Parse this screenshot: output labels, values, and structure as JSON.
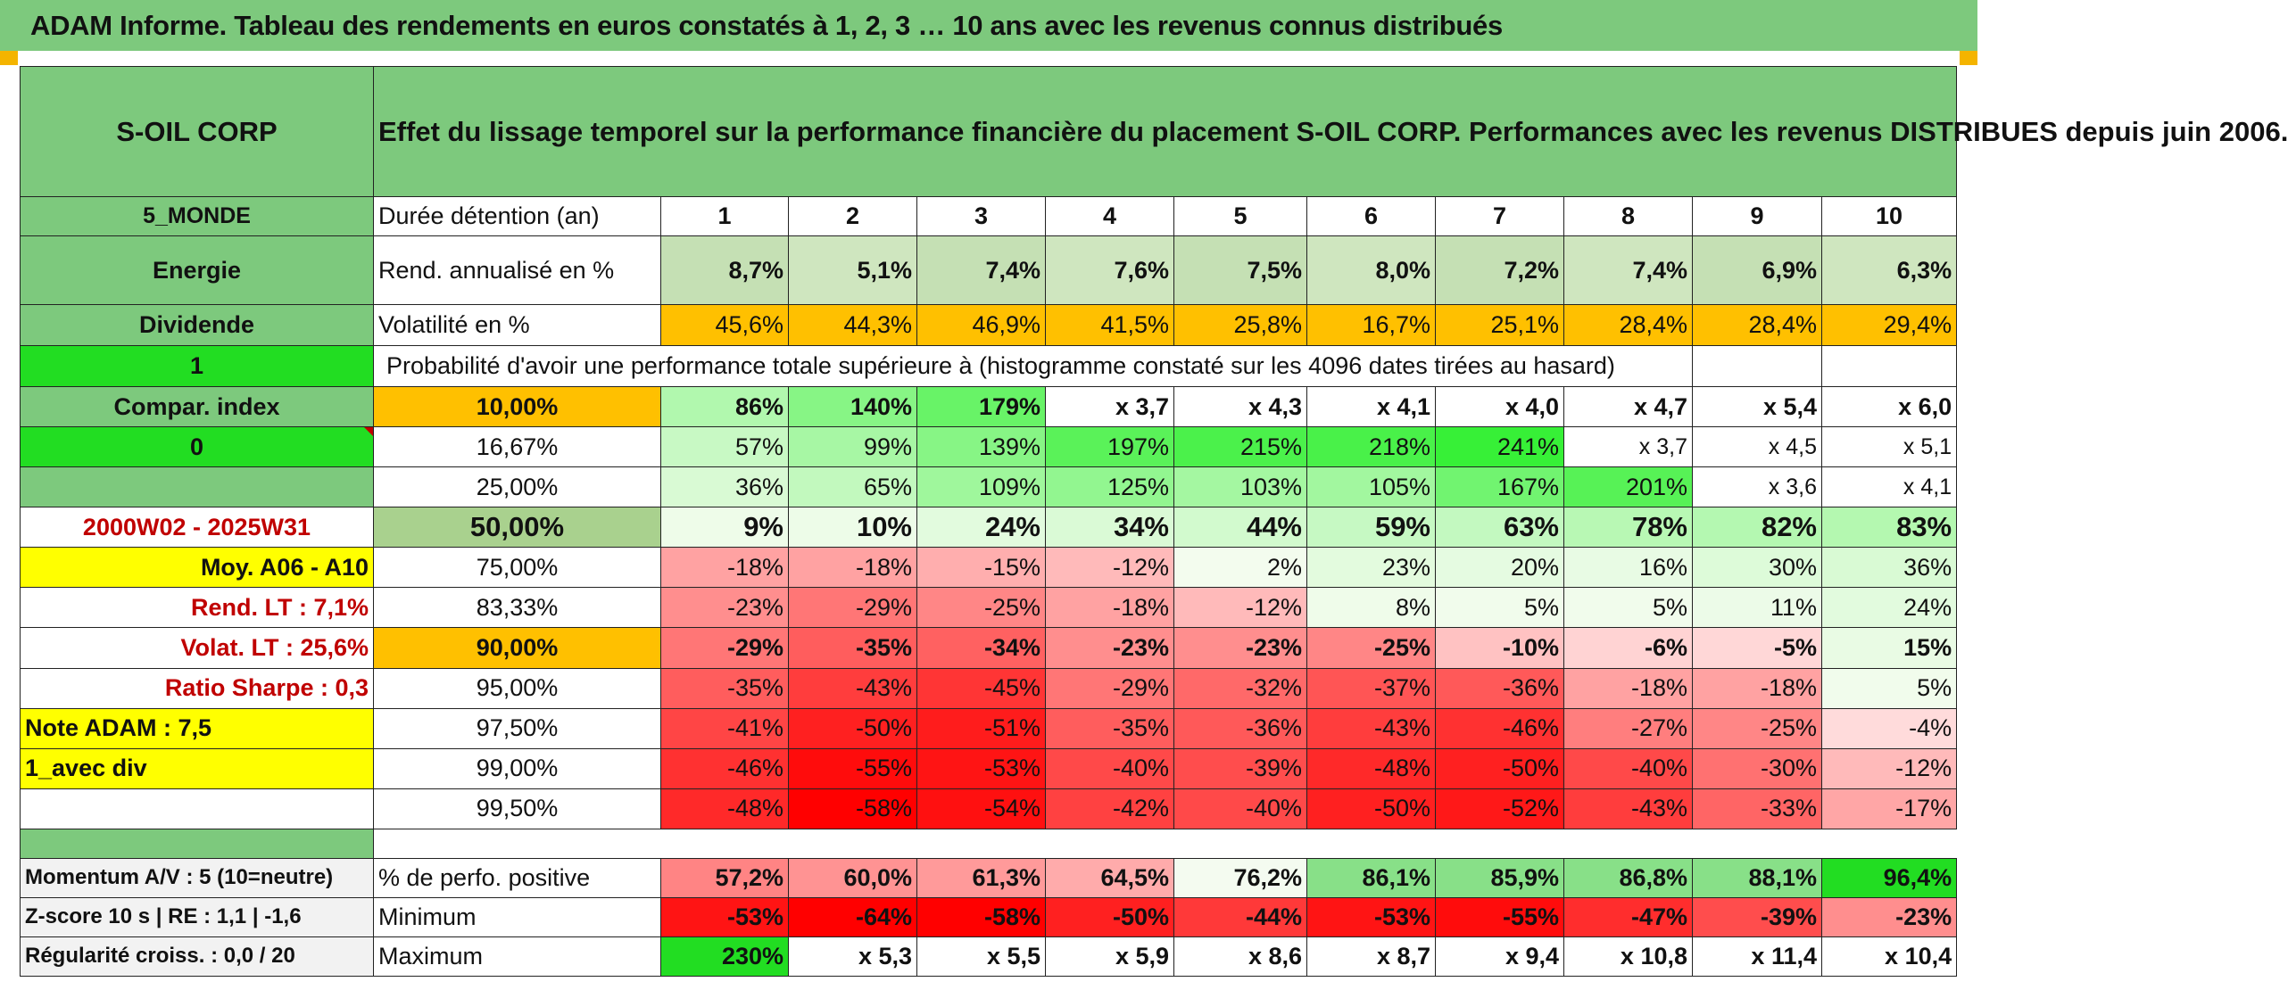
{
  "title": "ADAM Informe. Tableau des rendements en euros constatés à 1, 2, 3 … 10 ans avec les revenus connus distribués",
  "company": "S-OIL CORP",
  "heading": "Effet du lissage temporel sur la performance financière du placement S-OIL CORP. Performances avec les revenus DISTRIBUES depuis juin 2006.",
  "side": {
    "zone": "5_MONDE",
    "sector": "Energie",
    "style": "Dividende",
    "one": "1",
    "compar_index": "Compar. index",
    "zero": "0",
    "period": "2000W02 - 2025W31",
    "moy": "Moy. A06 - A10",
    "rend_lt": "Rend. LT :   7,1%",
    "volat_lt": "Volat. LT :   25,6%",
    "sharpe": "Ratio Sharpe :    0,3",
    "note": "Note ADAM : 7,5",
    "avec_div": "1_avec div",
    "momentum": "Momentum A/V : 5 (10=neutre)",
    "zscore": "Z-score 10 s | RE : 1,1 | -1,6",
    "regularite": "Régularité croiss. : 0,0 / 20"
  },
  "labels": {
    "duree": "Durée détention (an)",
    "rend": "Rend. annualisé en %",
    "volat": "Volatilité en %",
    "proba": "Probabilité d'avoir une performance totale supérieure à (histogramme constaté sur les 4096 dates tirées au hasard)",
    "pct_pos": "% de perfo. positive",
    "minimum": "Minimum",
    "maximum": "Maximum"
  },
  "years": [
    "1",
    "2",
    "3",
    "4",
    "5",
    "6",
    "7",
    "8",
    "9",
    "10"
  ],
  "rend": [
    "8,7%",
    "5,1%",
    "7,4%",
    "7,6%",
    "7,5%",
    "8,0%",
    "7,2%",
    "7,4%",
    "6,9%",
    "6,3%"
  ],
  "volat": [
    "45,6%",
    "44,3%",
    "46,9%",
    "41,5%",
    "25,8%",
    "16,7%",
    "25,1%",
    "28,4%",
    "28,4%",
    "29,4%"
  ],
  "proba_rows": [
    {
      "label": "10,00%",
      "bold": true,
      "values": [
        "86%",
        "140%",
        "179%",
        "x 3,7",
        "x 4,3",
        "x 4,1",
        "x 4,0",
        "x 4,7",
        "x 5,4",
        "x 6,0"
      ]
    },
    {
      "label": "16,67%",
      "bold": false,
      "values": [
        "57%",
        "99%",
        "139%",
        "197%",
        "215%",
        "218%",
        "241%",
        "x 3,7",
        "x 4,5",
        "x 5,1"
      ]
    },
    {
      "label": "25,00%",
      "bold": false,
      "values": [
        "36%",
        "65%",
        "109%",
        "125%",
        "103%",
        "105%",
        "167%",
        "201%",
        "x 3,6",
        "x 4,1"
      ]
    },
    {
      "label": "50,00%",
      "bold": true,
      "values": [
        "9%",
        "10%",
        "24%",
        "34%",
        "44%",
        "59%",
        "63%",
        "78%",
        "82%",
        "83%"
      ]
    },
    {
      "label": "75,00%",
      "bold": false,
      "values": [
        "-18%",
        "-18%",
        "-15%",
        "-12%",
        "2%",
        "23%",
        "20%",
        "16%",
        "30%",
        "36%"
      ]
    },
    {
      "label": "83,33%",
      "bold": false,
      "values": [
        "-23%",
        "-29%",
        "-25%",
        "-18%",
        "-12%",
        "8%",
        "5%",
        "5%",
        "11%",
        "24%"
      ]
    },
    {
      "label": "90,00%",
      "bold": true,
      "values": [
        "-29%",
        "-35%",
        "-34%",
        "-23%",
        "-23%",
        "-25%",
        "-10%",
        "-6%",
        "-5%",
        "15%"
      ]
    },
    {
      "label": "95,00%",
      "bold": false,
      "values": [
        "-35%",
        "-43%",
        "-45%",
        "-29%",
        "-32%",
        "-37%",
        "-36%",
        "-18%",
        "-18%",
        "5%"
      ]
    },
    {
      "label": "97,50%",
      "bold": false,
      "values": [
        "-41%",
        "-50%",
        "-51%",
        "-35%",
        "-36%",
        "-43%",
        "-46%",
        "-27%",
        "-25%",
        "-4%"
      ]
    },
    {
      "label": "99,00%",
      "bold": false,
      "values": [
        "-46%",
        "-55%",
        "-53%",
        "-40%",
        "-39%",
        "-48%",
        "-50%",
        "-40%",
        "-30%",
        "-12%"
      ]
    },
    {
      "label": "99,50%",
      "bold": false,
      "values": [
        "-48%",
        "-58%",
        "-54%",
        "-42%",
        "-40%",
        "-50%",
        "-52%",
        "-43%",
        "-33%",
        "-17%"
      ]
    }
  ],
  "pct_pos": [
    "57,2%",
    "60,0%",
    "61,3%",
    "64,5%",
    "76,2%",
    "86,1%",
    "85,9%",
    "86,8%",
    "88,1%",
    "96,4%"
  ],
  "minimum": [
    "-53%",
    "-64%",
    "-58%",
    "-50%",
    "-44%",
    "-53%",
    "-55%",
    "-47%",
    "-39%",
    "-23%"
  ],
  "maximum": [
    "230%",
    "x 5,3",
    "x 5,5",
    "x 5,9",
    "x 8,6",
    "x 8,7",
    "x 9,4",
    "x 10,8",
    "x 11,4",
    "x 10,4"
  ],
  "colors": {
    "header_green": "#7dc97d",
    "light_green": "#c5e0b4",
    "orange": "#ffc000",
    "yellow": "#ffff00",
    "lime": "#22dd22",
    "dark_red_text": "#c00000"
  }
}
